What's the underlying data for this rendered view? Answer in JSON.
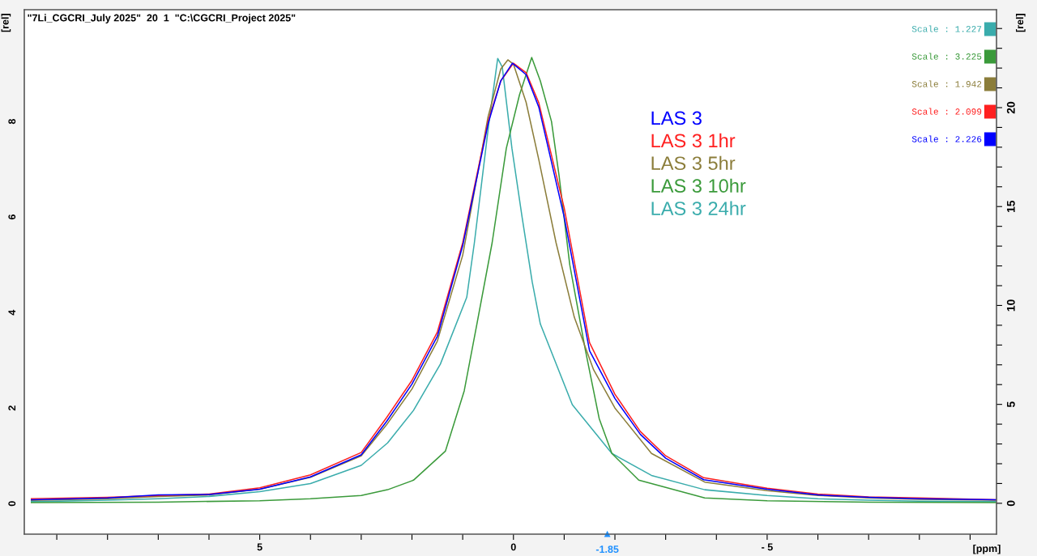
{
  "chart_data": {
    "type": "line",
    "title": "\"7Li_CGCRI_July 2025\"  20  1  \"C:\\CGCRI_Project 2025\"",
    "xlabel": "[ppm]",
    "ylabel": "[rel]",
    "y2label": "[rel]",
    "xlim": [
      9.64,
      -9.52
    ],
    "xticks": [
      {
        "value": 9,
        "label": null
      },
      {
        "value": 8,
        "label": null
      },
      {
        "value": 7,
        "label": null
      },
      {
        "value": 6,
        "label": null
      },
      5,
      {
        "value": 4,
        "label": null
      },
      {
        "value": 3,
        "label": null
      },
      {
        "value": 2,
        "label": null
      },
      {
        "value": 1,
        "label": null
      },
      0,
      {
        "value": -1,
        "label": null
      },
      {
        "value": -2,
        "label": null
      },
      {
        "value": -3,
        "label": null
      },
      {
        "value": -4,
        "label": null
      },
      {
        "value": -5,
        "label": "- 5"
      },
      {
        "value": -6,
        "label": null
      },
      {
        "value": -7,
        "label": null
      },
      {
        "value": -8,
        "label": null
      },
      {
        "value": -9,
        "label": null
      }
    ],
    "ylim": [
      -0.64,
      10.34
    ],
    "yticks": [
      0,
      2,
      4,
      6,
      8
    ],
    "y2lim": [
      -1.56,
      24.95
    ],
    "y2ticks": [
      0,
      {
        "value": 1,
        "label": null
      },
      {
        "value": 2,
        "label": null
      },
      {
        "value": 3,
        "label": null
      },
      {
        "value": 4,
        "label": null
      },
      5,
      {
        "value": 6,
        "label": null
      },
      {
        "value": 7,
        "label": null
      },
      {
        "value": 8,
        "label": null
      },
      {
        "value": 9,
        "label": null
      },
      10,
      {
        "value": 11,
        "label": null
      },
      {
        "value": 12,
        "label": null
      },
      {
        "value": 13,
        "label": null
      },
      {
        "value": 14,
        "label": null
      },
      15,
      {
        "value": 16,
        "label": null
      },
      {
        "value": 17,
        "label": null
      },
      {
        "value": 18,
        "label": null
      },
      {
        "value": 19,
        "label": null
      },
      20,
      {
        "value": 21,
        "label": null
      },
      {
        "value": 22,
        "label": null
      },
      {
        "value": 23,
        "label": null
      },
      {
        "value": 24,
        "label": null
      }
    ],
    "grid": false,
    "legend": "top right",
    "marker": "none",
    "line_style": "solid",
    "annotations": [
      {
        "text": "-1.85",
        "x": -1.85,
        "y": -0.64
      },
      "Scale : 1.227",
      "Scale : 3.225",
      "Scale : 1.942",
      "Scale : 2.099",
      "Scale : 2.226"
    ],
    "series": [
      {
        "name": "LAS 3",
        "color": "#0000ff",
        "x": [
          9.5,
          8,
          7,
          6,
          5,
          4,
          3,
          2.5,
          2,
          1.5,
          1,
          0.5,
          0.25,
          0.02,
          -0.25,
          -0.5,
          -1,
          -1.5,
          -2,
          -2.5,
          -3,
          -3.75,
          -5,
          -6,
          -7,
          -8,
          -9.5
        ],
        "values": [
          0.08,
          0.12,
          0.18,
          0.19,
          0.3,
          0.56,
          1.02,
          1.72,
          2.5,
          3.5,
          5.4,
          7.95,
          8.85,
          9.22,
          8.98,
          8.3,
          6.0,
          3.2,
          2.2,
          1.45,
          0.95,
          0.5,
          0.3,
          0.18,
          0.13,
          0.1,
          0.08
        ]
      },
      {
        "name": "LAS 3 1hr",
        "color": "#ff2020",
        "x": [
          9.5,
          8,
          7,
          6,
          5,
          4,
          3,
          2.5,
          2,
          1.5,
          1,
          0.5,
          0.25,
          0,
          -0.25,
          -0.5,
          -1,
          -1.5,
          -2,
          -2.5,
          -3,
          -3.75,
          -5,
          -6,
          -7,
          -8,
          -9.5
        ],
        "values": [
          0.1,
          0.13,
          0.17,
          0.2,
          0.33,
          0.6,
          1.07,
          1.8,
          2.58,
          3.59,
          5.46,
          8.0,
          8.85,
          9.22,
          9.02,
          8.39,
          6.19,
          3.37,
          2.29,
          1.51,
          1.0,
          0.54,
          0.32,
          0.2,
          0.14,
          0.12,
          0.08
        ]
      },
      {
        "name": "LAS 3 5hr",
        "color": "#8b7d3a",
        "x": [
          9.5,
          8,
          7,
          6,
          5,
          4,
          3,
          2.5,
          2,
          1.5,
          1,
          0.5,
          0.25,
          0.11,
          0,
          -0.25,
          -0.5,
          -0.84,
          -1.2,
          -1.58,
          -2,
          -2.72,
          -3.77,
          -5,
          -6,
          -7,
          -8,
          -9.5
        ],
        "values": [
          0.07,
          0.1,
          0.15,
          0.18,
          0.3,
          0.55,
          1.0,
          1.65,
          2.4,
          3.4,
          5.2,
          8.1,
          9.1,
          9.29,
          9.2,
          8.4,
          7.2,
          5.46,
          3.9,
          2.8,
          2.0,
          1.05,
          0.45,
          0.27,
          0.17,
          0.12,
          0.09,
          0.07
        ]
      },
      {
        "name": "LAS 3 10hr",
        "color": "#3a9a3a",
        "x": [
          9.5,
          7,
          5,
          4,
          3,
          2.48,
          1.97,
          1.34,
          0.97,
          0.72,
          0.42,
          0.14,
          -0.12,
          -0.36,
          -0.53,
          -0.75,
          -0.9,
          -1.11,
          -1.42,
          -1.69,
          -1.94,
          -2.47,
          -3.77,
          -5,
          -7,
          -9.5
        ],
        "values": [
          0.02,
          0.03,
          0.06,
          0.1,
          0.17,
          0.29,
          0.49,
          1.1,
          2.36,
          3.76,
          5.46,
          7.44,
          8.56,
          9.34,
          8.85,
          8.0,
          6.86,
          5.0,
          3.2,
          1.78,
          1.05,
          0.49,
          0.12,
          0.06,
          0.03,
          0.02
        ]
      },
      {
        "name": "LAS 3 24hr",
        "color": "#3aacac",
        "x": [
          9.5,
          8,
          7,
          6,
          5,
          4,
          3,
          2.48,
          1.97,
          1.44,
          0.92,
          0.77,
          0.48,
          0.31,
          0.22,
          0.03,
          -0.17,
          -0.37,
          -0.53,
          -1.16,
          -1.94,
          -2.72,
          -3.77,
          -5,
          -6,
          -7,
          -8,
          -9.5
        ],
        "values": [
          0.04,
          0.07,
          0.1,
          0.15,
          0.25,
          0.42,
          0.8,
          1.27,
          1.95,
          2.92,
          4.32,
          5.46,
          8.0,
          9.32,
          9.14,
          7.44,
          6.0,
          4.64,
          3.76,
          2.07,
          1.05,
          0.59,
          0.29,
          0.17,
          0.1,
          0.07,
          0.05,
          0.04
        ]
      }
    ]
  }
}
